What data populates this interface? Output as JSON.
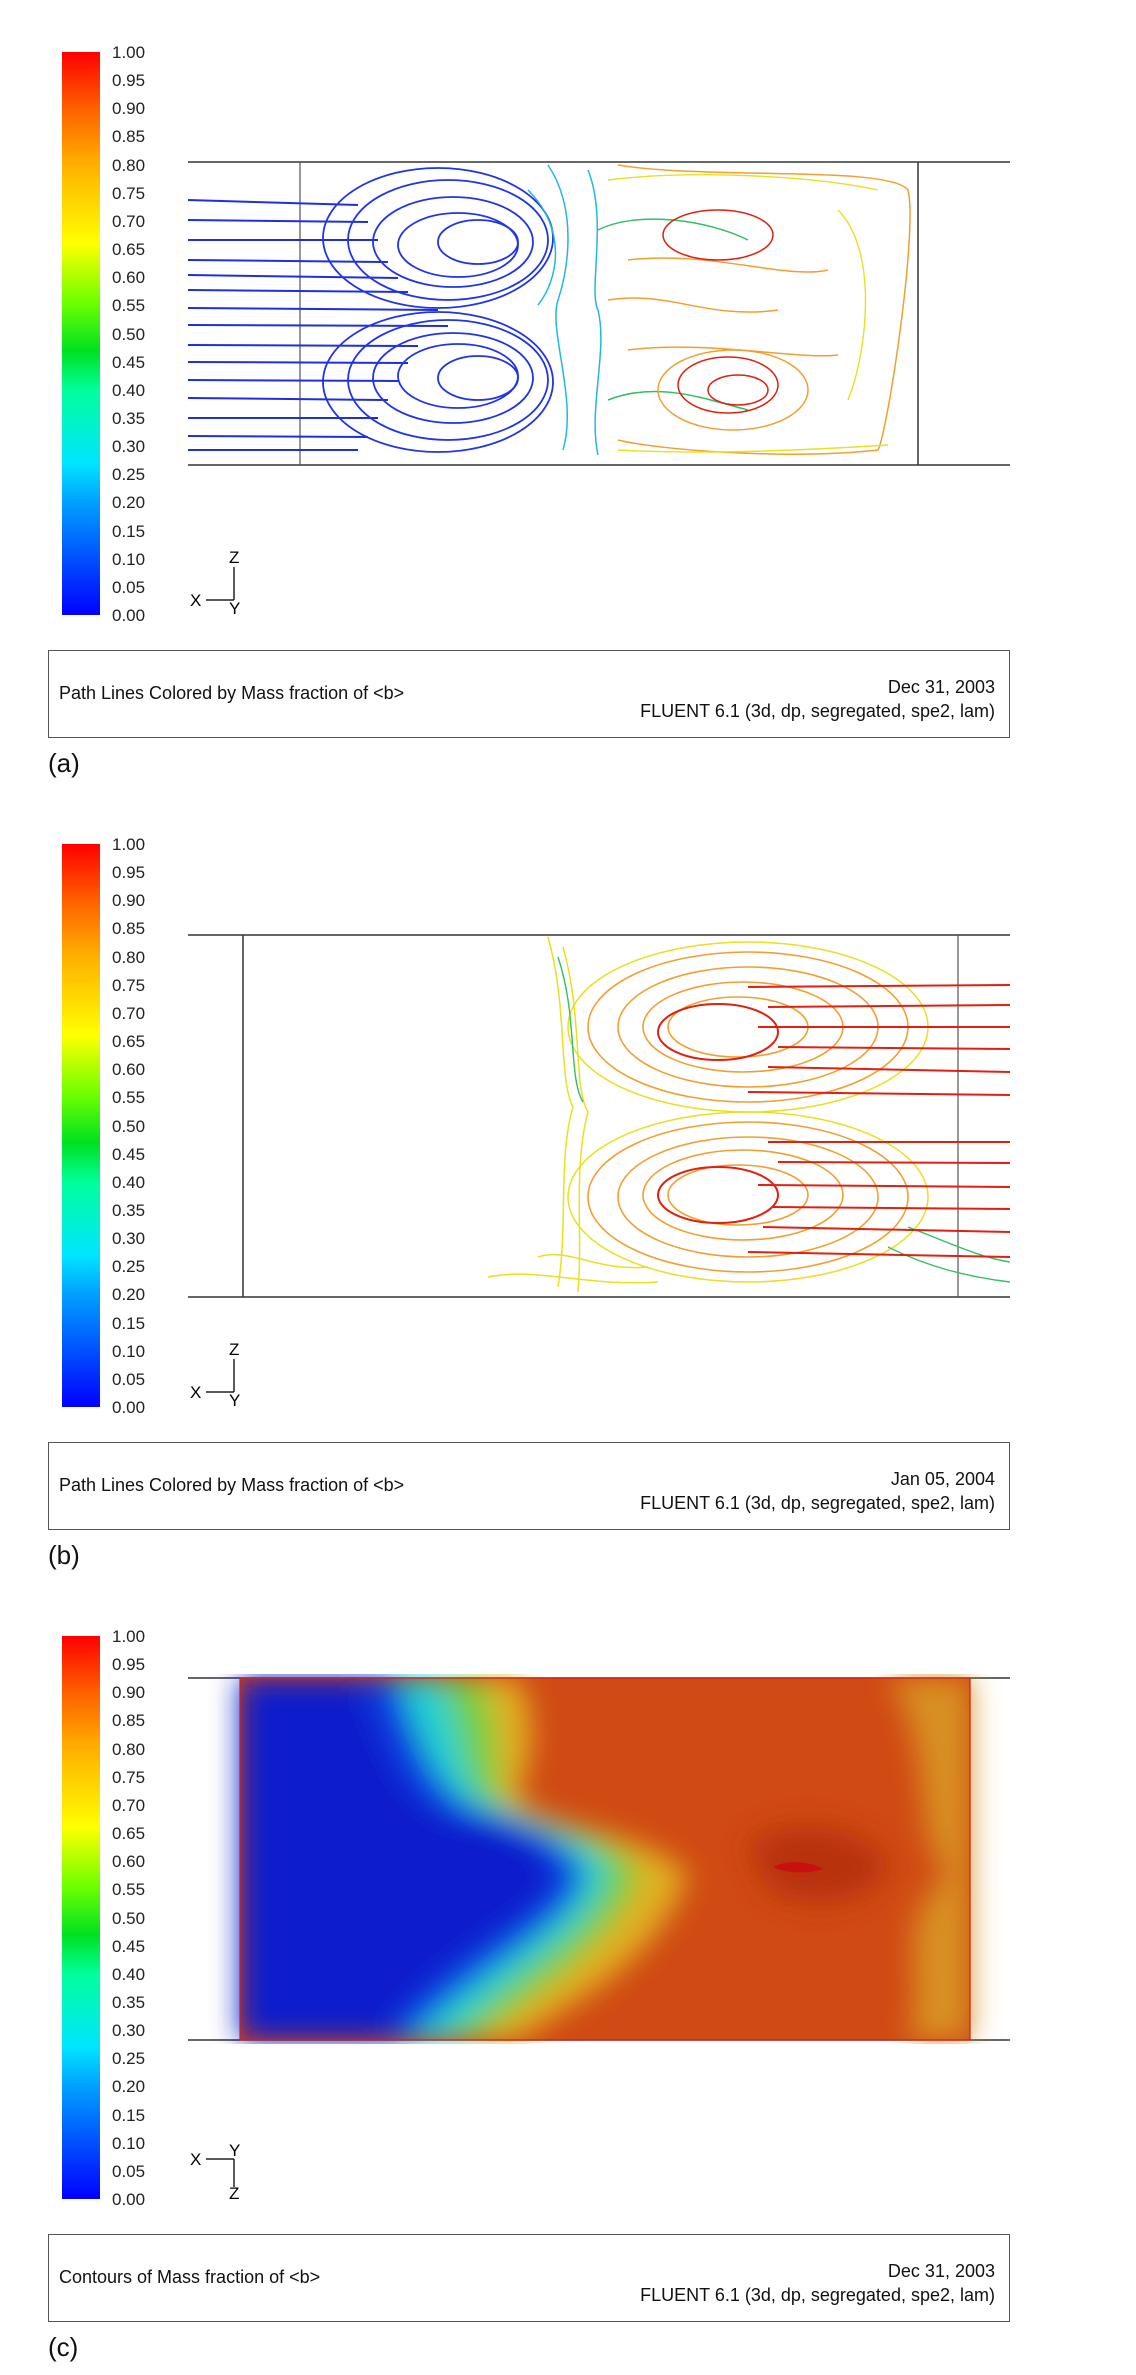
{
  "colorbar": {
    "ticks": [
      "1.00",
      "0.95",
      "0.90",
      "0.85",
      "0.80",
      "0.75",
      "0.70",
      "0.65",
      "0.60",
      "0.55",
      "0.50",
      "0.45",
      "0.40",
      "0.35",
      "0.30",
      "0.25",
      "0.20",
      "0.15",
      "0.10",
      "0.05",
      "0.00"
    ]
  },
  "panels": [
    {
      "id": "a",
      "caption_title": "Path Lines Colored by Mass fraction of <b>",
      "date": "Dec 31, 2003",
      "solver": "FLUENT 6.1 (3d, dp, segregated, spe2, lam)",
      "label": "(a)",
      "axes": {
        "horizontal": "X",
        "vertical": "Z",
        "origin": "Y"
      }
    },
    {
      "id": "b",
      "caption_title": "Path Lines Colored by Mass fraction of <b>",
      "date": "Jan 05, 2004",
      "solver": "FLUENT 6.1 (3d, dp, segregated, spe2, lam)",
      "label": "(b)",
      "axes": {
        "horizontal": "X",
        "vertical": "Z",
        "origin": "Y"
      }
    },
    {
      "id": "c",
      "caption_title": "Contours of Mass fraction of <b>",
      "date": "Dec 31, 2003",
      "solver": "FLUENT 6.1 (3d, dp, segregated, spe2, lam)",
      "label": "(c)",
      "axes": {
        "horizontal": "X",
        "vertical": "Z",
        "origin": "Y"
      }
    }
  ],
  "colors": {
    "blue": "#1428e6",
    "cyan": "#20c8e0",
    "green": "#30c060",
    "yellow": "#e8e020",
    "orange": "#f0a030",
    "red": "#e02010",
    "contour_blue": "#0a1ecc",
    "contour_red": "#c83010"
  }
}
